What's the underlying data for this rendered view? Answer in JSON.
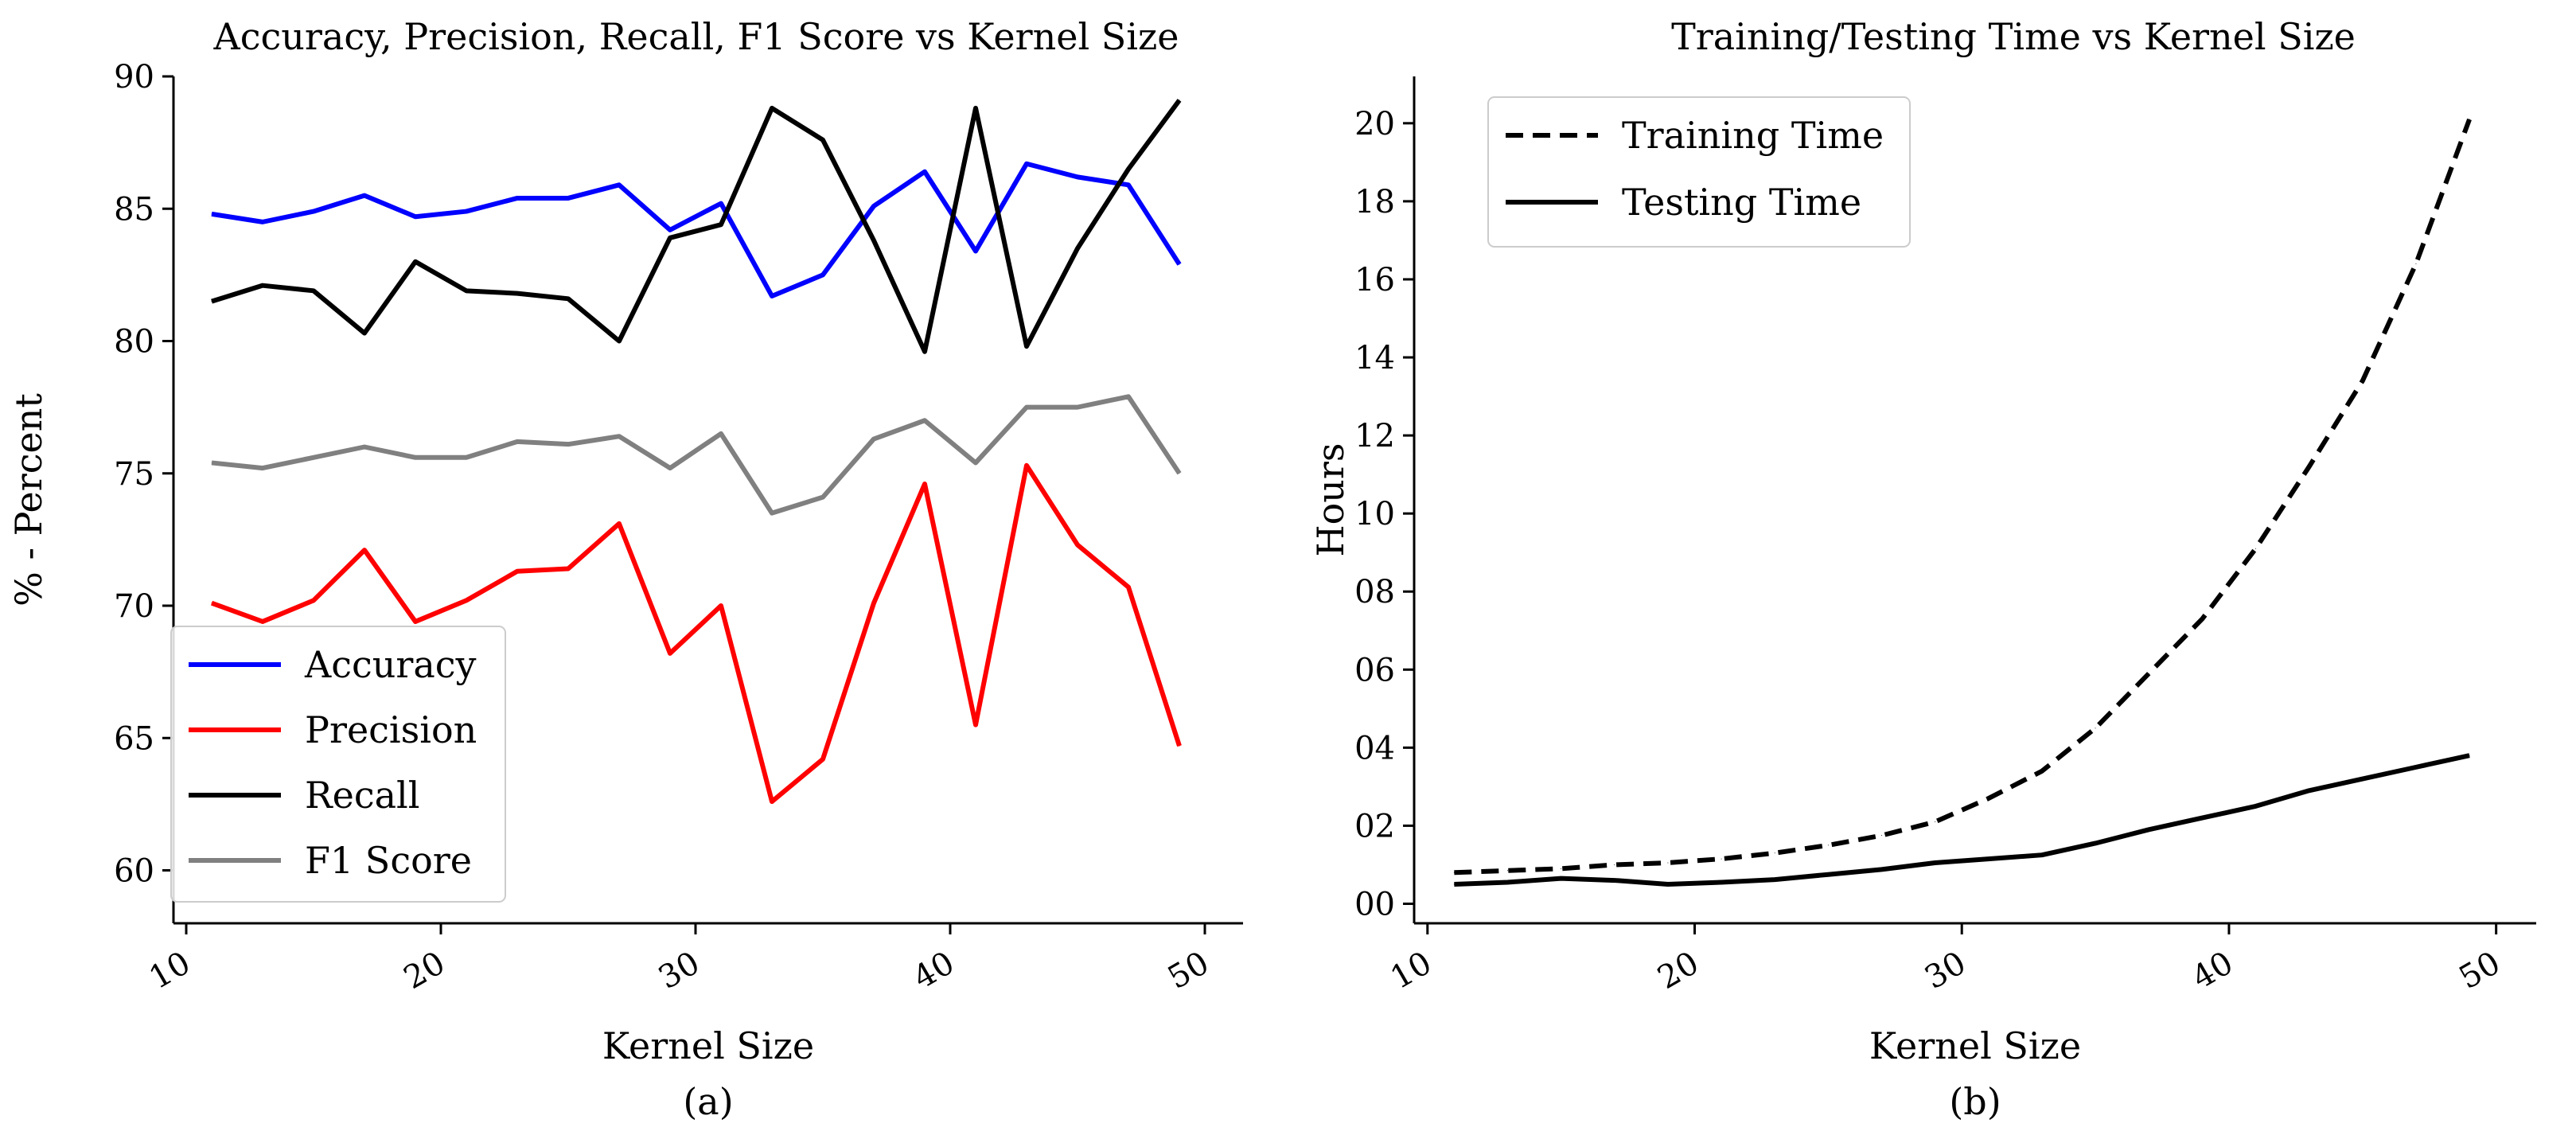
{
  "chart_data": [
    {
      "type": "line",
      "title": "Accuracy, Precision, Recall, F1 Score vs Kernel Size",
      "xlabel": "Kernel Size",
      "ylabel": "% - Percent",
      "sublabel": "(a)",
      "xlim": [
        9.5,
        51.5
      ],
      "ylim": [
        58,
        90
      ],
      "xticks": [
        "10",
        "20",
        "30",
        "40",
        "50"
      ],
      "xtick_values": [
        10,
        20,
        30,
        40,
        50
      ],
      "yticks": [
        "60",
        "65",
        "70",
        "75",
        "80",
        "85",
        "90"
      ],
      "ytick_values": [
        60,
        65,
        70,
        75,
        80,
        85,
        90
      ],
      "legend_position": "bottom-left",
      "x": [
        11,
        13,
        15,
        17,
        19,
        21,
        23,
        25,
        27,
        29,
        31,
        33,
        35,
        37,
        39,
        41,
        43,
        45,
        47,
        49
      ],
      "series": [
        {
          "name": "Accuracy",
          "color": "#0000ff",
          "dash": "solid",
          "values": [
            84.8,
            84.5,
            84.9,
            85.5,
            84.7,
            84.9,
            85.4,
            85.4,
            85.9,
            84.2,
            85.2,
            81.7,
            82.5,
            85.1,
            86.4,
            83.4,
            86.7,
            86.2,
            85.9,
            82.9
          ]
        },
        {
          "name": "Precision",
          "color": "#ff0000",
          "dash": "solid",
          "values": [
            70.1,
            69.4,
            70.2,
            72.1,
            69.4,
            70.2,
            71.3,
            71.4,
            73.1,
            68.2,
            70.0,
            62.6,
            64.2,
            70.1,
            74.6,
            65.5,
            75.3,
            72.3,
            70.7,
            64.7
          ]
        },
        {
          "name": "Recall",
          "color": "#000000",
          "dash": "solid",
          "values": [
            81.5,
            82.1,
            81.9,
            80.3,
            83.0,
            81.9,
            81.8,
            81.6,
            80.0,
            83.9,
            84.4,
            88.8,
            87.6,
            83.8,
            79.6,
            88.8,
            79.8,
            83.5,
            86.5,
            89.1
          ]
        },
        {
          "name": "F1 Score",
          "color": "#808080",
          "dash": "solid",
          "values": [
            75.4,
            75.2,
            75.6,
            76.0,
            75.6,
            75.6,
            76.2,
            76.1,
            76.4,
            75.2,
            76.5,
            73.5,
            74.1,
            76.3,
            77.0,
            75.4,
            77.5,
            77.5,
            77.9,
            75.0
          ]
        }
      ]
    },
    {
      "type": "line",
      "title": "Training/Testing Time vs Kernel Size",
      "xlabel": "Kernel Size",
      "ylabel": "Hours",
      "sublabel": "(b)",
      "xlim": [
        9.5,
        51.5
      ],
      "ylim": [
        -0.5,
        21.2
      ],
      "xticks": [
        "10",
        "20",
        "30",
        "40",
        "50"
      ],
      "xtick_values": [
        10,
        20,
        30,
        40,
        50
      ],
      "yticks": [
        "00",
        "02",
        "04",
        "06",
        "08",
        "10",
        "12",
        "14",
        "16",
        "18",
        "20"
      ],
      "ytick_values": [
        0,
        2,
        4,
        6,
        8,
        10,
        12,
        14,
        16,
        18,
        20
      ],
      "legend_position": "top-left",
      "x": [
        11,
        13,
        15,
        17,
        19,
        21,
        23,
        25,
        27,
        29,
        31,
        33,
        35,
        37,
        39,
        41,
        43,
        45,
        47,
        49
      ],
      "series": [
        {
          "name": "Training Time",
          "color": "#000000",
          "dash": "dashed",
          "values": [
            0.8,
            0.85,
            0.9,
            1.0,
            1.05,
            1.15,
            1.3,
            1.5,
            1.75,
            2.1,
            2.7,
            3.4,
            4.5,
            5.9,
            7.3,
            9.1,
            11.2,
            13.4,
            16.4,
            20.1
          ]
        },
        {
          "name": "Testing Time",
          "color": "#000000",
          "dash": "solid",
          "values": [
            0.5,
            0.55,
            0.65,
            0.6,
            0.5,
            0.55,
            0.62,
            0.75,
            0.88,
            1.05,
            1.15,
            1.25,
            1.55,
            1.9,
            2.2,
            2.5,
            2.9,
            3.2,
            3.5,
            3.8
          ]
        }
      ]
    }
  ]
}
